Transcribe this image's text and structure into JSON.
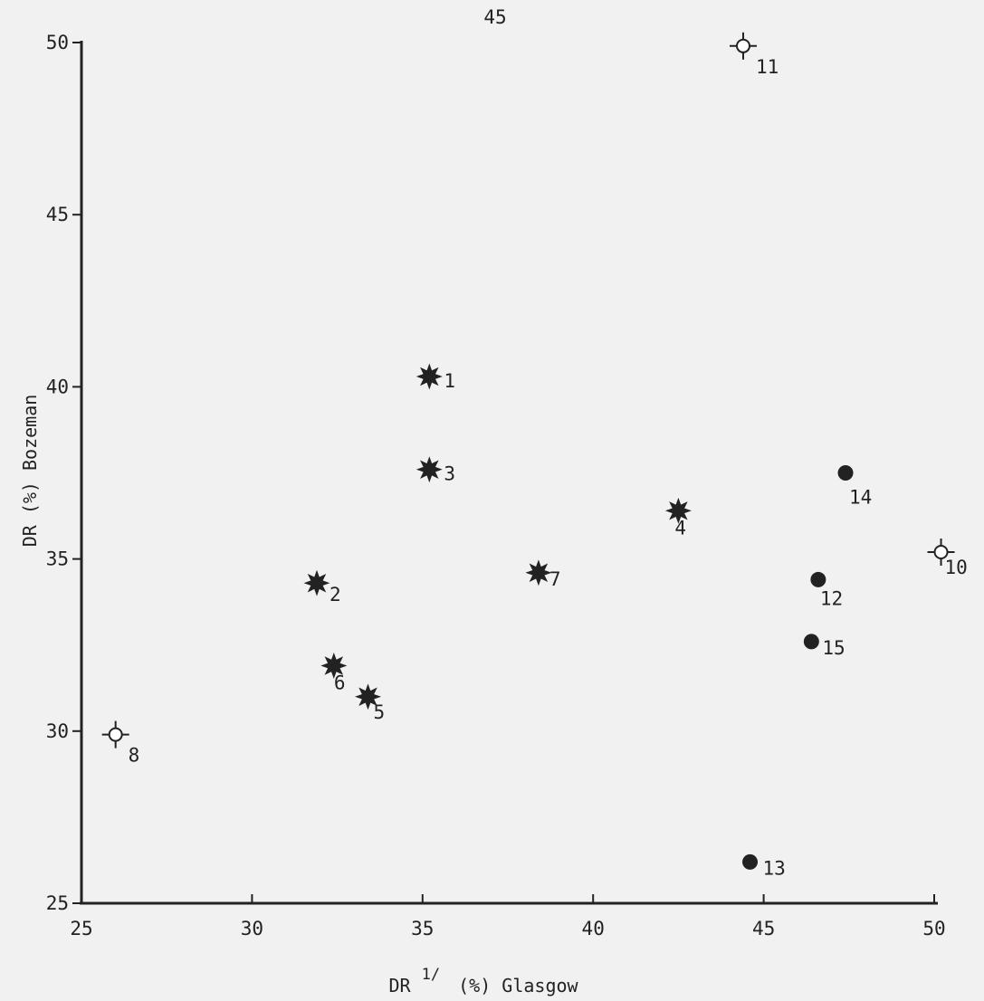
{
  "page_number": "45",
  "chart_data": {
    "type": "scatter",
    "xlabel_prefix": "DR",
    "xlabel_superscript": "1/",
    "xlabel_suffix": "(%) Glasgow",
    "ylabel": "DR (%) Bozeman",
    "xlim": [
      25,
      50
    ],
    "ylim": [
      25,
      50
    ],
    "x_ticks": [
      25,
      30,
      35,
      40,
      45,
      50
    ],
    "y_ticks": [
      25,
      30,
      35,
      40,
      45,
      50
    ],
    "grid": false,
    "legend": "none",
    "colors": {
      "marker": "#222222",
      "axis": "#222222",
      "background": "#f1f1f1"
    },
    "points": [
      {
        "label": "1",
        "x": 35.2,
        "y": 40.3,
        "marker": "star"
      },
      {
        "label": "2",
        "x": 31.9,
        "y": 34.3,
        "marker": "star"
      },
      {
        "label": "3",
        "x": 35.2,
        "y": 37.6,
        "marker": "star"
      },
      {
        "label": "4",
        "x": 42.5,
        "y": 36.4,
        "marker": "star"
      },
      {
        "label": "5",
        "x": 33.4,
        "y": 31.0,
        "marker": "star"
      },
      {
        "label": "6",
        "x": 32.4,
        "y": 31.9,
        "marker": "star"
      },
      {
        "label": "7",
        "x": 38.4,
        "y": 34.6,
        "marker": "star"
      },
      {
        "label": "8",
        "x": 26.0,
        "y": 29.9,
        "marker": "open-cross"
      },
      {
        "label": "10",
        "x": 50.2,
        "y": 35.2,
        "marker": "open-cross"
      },
      {
        "label": "11",
        "x": 44.4,
        "y": 49.9,
        "marker": "open-cross"
      },
      {
        "label": "12",
        "x": 46.6,
        "y": 34.4,
        "marker": "filled-circle"
      },
      {
        "label": "13",
        "x": 44.6,
        "y": 26.2,
        "marker": "filled-circle"
      },
      {
        "label": "14",
        "x": 47.4,
        "y": 37.5,
        "marker": "filled-circle"
      },
      {
        "label": "15",
        "x": 46.4,
        "y": 32.6,
        "marker": "filled-circle"
      }
    ]
  }
}
